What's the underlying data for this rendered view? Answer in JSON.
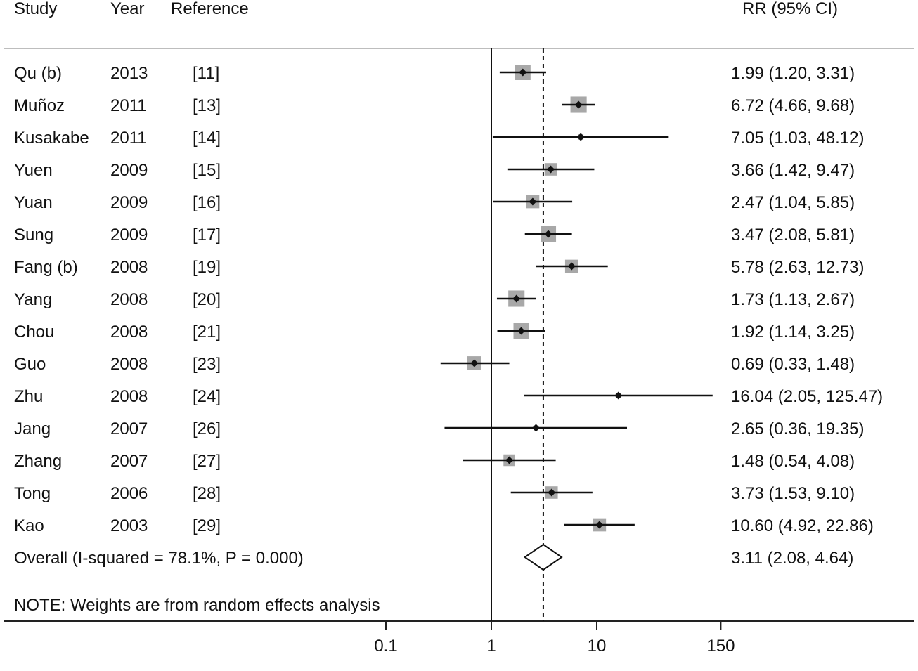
{
  "header": {
    "study": "Study",
    "year": "Year",
    "reference": "Reference",
    "rr": "RR (95% CI)"
  },
  "overall_label": "Overall  (I-squared = 78.1%, P = 0.000)",
  "overall_rr": "3.11 (2.08, 4.64)",
  "note": "NOTE: Weights are from random effects analysis",
  "chart_data": {
    "type": "forest",
    "xscale": "log",
    "xlim": [
      0.1,
      150
    ],
    "xticks": [
      {
        "value": 0.1,
        "label": "0.1"
      },
      {
        "value": 1,
        "label": "1"
      },
      {
        "value": 10,
        "label": "10"
      },
      {
        "value": 150,
        "label": "150"
      }
    ],
    "null_line": 1,
    "overall_line": 3.11,
    "studies": [
      {
        "study": "Qu (b)",
        "year": "2013",
        "ref": "[11]",
        "rr": 1.99,
        "lo": 1.2,
        "hi": 3.31,
        "label": "1.99 (1.20, 3.31)",
        "weight": 1.0
      },
      {
        "study": "Muñoz",
        "year": "2011",
        "ref": "[13]",
        "rr": 6.72,
        "lo": 4.66,
        "hi": 9.68,
        "label": "6.72 (4.66, 9.68)",
        "weight": 1.05
      },
      {
        "study": "Kusakabe",
        "year": "2011",
        "ref": "[14]",
        "rr": 7.05,
        "lo": 1.03,
        "hi": 48.12,
        "label": "7.05 (1.03, 48.12)",
        "weight": 0.35
      },
      {
        "study": "Yuen",
        "year": "2009",
        "ref": "[15]",
        "rr": 3.66,
        "lo": 1.42,
        "hi": 9.47,
        "label": "3.66 (1.42, 9.47)",
        "weight": 0.8
      },
      {
        "study": "Yuan",
        "year": "2009",
        "ref": "[16]",
        "rr": 2.47,
        "lo": 1.04,
        "hi": 5.85,
        "label": "2.47 (1.04, 5.85)",
        "weight": 0.85
      },
      {
        "study": "Sung",
        "year": "2009",
        "ref": "[17]",
        "rr": 3.47,
        "lo": 2.08,
        "hi": 5.81,
        "label": "3.47 (2.08, 5.81)",
        "weight": 1.0
      },
      {
        "study": "Fang (b)",
        "year": "2008",
        "ref": "[19]",
        "rr": 5.78,
        "lo": 2.63,
        "hi": 12.73,
        "label": "5.78 (2.63, 12.73)",
        "weight": 0.85
      },
      {
        "study": "Yang",
        "year": "2008",
        "ref": "[20]",
        "rr": 1.73,
        "lo": 1.13,
        "hi": 2.67,
        "label": "1.73 (1.13, 2.67)",
        "weight": 1.05
      },
      {
        "study": "Chou",
        "year": "2008",
        "ref": "[21]",
        "rr": 1.92,
        "lo": 1.14,
        "hi": 3.25,
        "label": "1.92 (1.14, 3.25)",
        "weight": 1.0
      },
      {
        "study": "Guo",
        "year": "2008",
        "ref": "[23]",
        "rr": 0.69,
        "lo": 0.33,
        "hi": 1.48,
        "label": "0.69 (0.33, 1.48)",
        "weight": 0.9
      },
      {
        "study": "Zhu",
        "year": "2008",
        "ref": "[24]",
        "rr": 16.04,
        "lo": 2.05,
        "hi": 125.47,
        "label": "16.04 (2.05, 125.47)",
        "weight": 0.35
      },
      {
        "study": "Jang",
        "year": "2007",
        "ref": "[26]",
        "rr": 2.65,
        "lo": 0.36,
        "hi": 19.35,
        "label": "2.65 (0.36, 19.35)",
        "weight": 0.3
      },
      {
        "study": "Zhang",
        "year": "2007",
        "ref": "[27]",
        "rr": 1.48,
        "lo": 0.54,
        "hi": 4.08,
        "label": "1.48 (0.54, 4.08)",
        "weight": 0.75
      },
      {
        "study": "Tong",
        "year": "2006",
        "ref": "[28]",
        "rr": 3.73,
        "lo": 1.53,
        "hi": 9.1,
        "label": "3.73 (1.53, 9.10)",
        "weight": 0.8
      },
      {
        "study": "Kao",
        "year": "2003",
        "ref": "[29]",
        "rr": 10.6,
        "lo": 4.92,
        "hi": 22.86,
        "label": "10.60 (4.92, 22.86)",
        "weight": 0.85
      }
    ],
    "overall": {
      "rr": 3.11,
      "lo": 2.08,
      "hi": 4.64
    }
  }
}
